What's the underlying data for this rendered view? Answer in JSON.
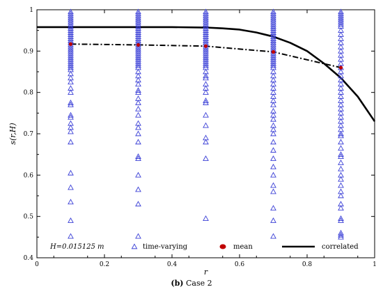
{
  "chart_data": {
    "type": "scatter",
    "xlabel": "r",
    "ylabel": "s(r,H)",
    "xlim": [
      0,
      1
    ],
    "ylim": [
      0.4,
      1
    ],
    "xticks": [
      "0",
      "0.2",
      "0.4",
      "0.6",
      "0.8",
      "1"
    ],
    "yticks": [
      "0.4",
      "0.5",
      "0.6",
      "0.7",
      "0.8",
      "0.9",
      "1"
    ],
    "annotation": "H=0.015125 m",
    "legend": {
      "placement": "bottom",
      "time_varying": "time-varying",
      "mean": "mean",
      "correlated": "correlated"
    },
    "series": [
      {
        "name": "time-varying",
        "marker": "open-triangle",
        "color": "#3a3fd6",
        "groups": [
          {
            "x": 0.1,
            "y": [
              0.452,
              0.49,
              0.535,
              0.57,
              0.605,
              0.68,
              0.705,
              0.715,
              0.725,
              0.74,
              0.745,
              0.77,
              0.775,
              0.8,
              0.81,
              0.825,
              0.835,
              0.845,
              0.855,
              0.86,
              0.865,
              0.87,
              0.875,
              0.88,
              0.885,
              0.89,
              0.895,
              0.9,
              0.905,
              0.91,
              0.915,
              0.92,
              0.925,
              0.93,
              0.935,
              0.94,
              0.945,
              0.95,
              0.955,
              0.96,
              0.965,
              0.97,
              0.975,
              0.98,
              0.985,
              0.99,
              0.995
            ]
          },
          {
            "x": 0.3,
            "y": [
              0.452,
              0.53,
              0.565,
              0.6,
              0.64,
              0.645,
              0.68,
              0.7,
              0.715,
              0.725,
              0.745,
              0.76,
              0.775,
              0.785,
              0.8,
              0.805,
              0.82,
              0.83,
              0.84,
              0.85,
              0.86,
              0.865,
              0.87,
              0.875,
              0.88,
              0.885,
              0.89,
              0.895,
              0.9,
              0.905,
              0.91,
              0.915,
              0.92,
              0.925,
              0.93,
              0.935,
              0.94,
              0.945,
              0.95,
              0.955,
              0.96,
              0.965,
              0.97,
              0.975,
              0.98,
              0.985,
              0.99,
              0.995
            ]
          },
          {
            "x": 0.5,
            "y": [
              0.495,
              0.64,
              0.68,
              0.69,
              0.72,
              0.745,
              0.775,
              0.78,
              0.8,
              0.81,
              0.82,
              0.835,
              0.84,
              0.85,
              0.86,
              0.865,
              0.87,
              0.875,
              0.88,
              0.885,
              0.89,
              0.895,
              0.9,
              0.905,
              0.91,
              0.915,
              0.92,
              0.925,
              0.93,
              0.935,
              0.94,
              0.945,
              0.95,
              0.955,
              0.96,
              0.965,
              0.97,
              0.975,
              0.98,
              0.985,
              0.99,
              0.995
            ]
          },
          {
            "x": 0.7,
            "y": [
              0.452,
              0.49,
              0.52,
              0.56,
              0.575,
              0.6,
              0.62,
              0.64,
              0.66,
              0.68,
              0.7,
              0.71,
              0.72,
              0.735,
              0.745,
              0.755,
              0.77,
              0.78,
              0.79,
              0.8,
              0.81,
              0.82,
              0.83,
              0.84,
              0.85,
              0.86,
              0.865,
              0.87,
              0.875,
              0.88,
              0.885,
              0.89,
              0.895,
              0.9,
              0.905,
              0.91,
              0.915,
              0.92,
              0.925,
              0.93,
              0.935,
              0.94,
              0.945,
              0.95,
              0.955,
              0.96,
              0.965,
              0.97,
              0.975,
              0.98,
              0.985,
              0.99,
              0.995
            ]
          },
          {
            "x": 0.9,
            "y": [
              0.45,
              0.455,
              0.46,
              0.49,
              0.495,
              0.52,
              0.53,
              0.55,
              0.56,
              0.575,
              0.59,
              0.6,
              0.615,
              0.63,
              0.645,
              0.65,
              0.665,
              0.68,
              0.695,
              0.7,
              0.71,
              0.72,
              0.73,
              0.74,
              0.75,
              0.76,
              0.77,
              0.78,
              0.79,
              0.8,
              0.81,
              0.82,
              0.83,
              0.84,
              0.85,
              0.86,
              0.87,
              0.88,
              0.89,
              0.9,
              0.91,
              0.92,
              0.93,
              0.94,
              0.95,
              0.96,
              0.965,
              0.97,
              0.975,
              0.98,
              0.985,
              0.99,
              0.995
            ]
          }
        ]
      },
      {
        "name": "mean",
        "marker": "filled-circle",
        "color": "#c00000",
        "line": "dash-dot",
        "x": [
          0.1,
          0.3,
          0.5,
          0.7,
          0.9
        ],
        "y": [
          0.917,
          0.915,
          0.912,
          0.898,
          0.86
        ]
      },
      {
        "name": "correlated",
        "line": "solid",
        "color": "#000000",
        "x": [
          0,
          0.1,
          0.2,
          0.3,
          0.4,
          0.5,
          0.55,
          0.6,
          0.65,
          0.7,
          0.75,
          0.8,
          0.85,
          0.9,
          0.95,
          1.0
        ],
        "y": [
          0.958,
          0.958,
          0.958,
          0.958,
          0.958,
          0.957,
          0.955,
          0.952,
          0.945,
          0.935,
          0.92,
          0.9,
          0.87,
          0.835,
          0.79,
          0.73
        ]
      }
    ]
  },
  "caption": {
    "bold": "(b)",
    "text": " Case 2"
  }
}
